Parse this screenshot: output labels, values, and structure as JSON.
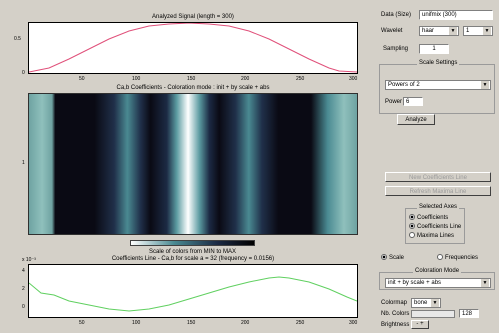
{
  "plots": {
    "signal": {
      "title": "Analyzed Signal (length = 300)",
      "xticks": [
        "50",
        "100",
        "150",
        "200",
        "250",
        "300"
      ],
      "yticks": [
        "0.5",
        "0"
      ]
    },
    "coefs": {
      "title": "Ca,b Coefficients - Coloration mode : init + by scale + abs",
      "scale_title": "Scale of colors from MIN to MAX",
      "ytick": "1"
    },
    "line": {
      "title": "Coefficients Line - Ca,b for scale a = 32 (frequency = 0.0156)",
      "exponent": "x 10⁻³",
      "xticks": [
        "50",
        "100",
        "150",
        "200",
        "250",
        "300"
      ],
      "yticks": [
        "4",
        "2",
        "0"
      ]
    }
  },
  "panel": {
    "data_size_label": "Data (Size)",
    "data_size_value": "unifmix (300)",
    "wavelet_label": "Wavelet",
    "wavelet_family": "haar",
    "wavelet_number": "1",
    "sampling_label": "Sampling",
    "sampling_value": "1",
    "scale_settings_title": "Scale Settings",
    "scale_mode": "Powers of 2",
    "power_label": "Power",
    "power_value": "6",
    "analyze_button": "Analyze",
    "new_coef_button": "New Coefficients Line",
    "refresh_max_button": "Refresh Maxima Line",
    "selected_axes_title": "Selected Axes",
    "axes_options": [
      "Coefficients",
      "Coefficients Line",
      "Maxima Lines"
    ],
    "scale_radio": "Scale",
    "frequencies_radio": "Frequencies",
    "colormap_title": "Coloration Mode",
    "colormap_value": "init + by scale + abs",
    "colormap_label": "Colormap",
    "colormap_name": "bone",
    "nb_colors_label": "Nb. Colors",
    "nb_colors_value": "128",
    "brightness_label": "Brightness",
    "brightness_value": "- +"
  }
}
